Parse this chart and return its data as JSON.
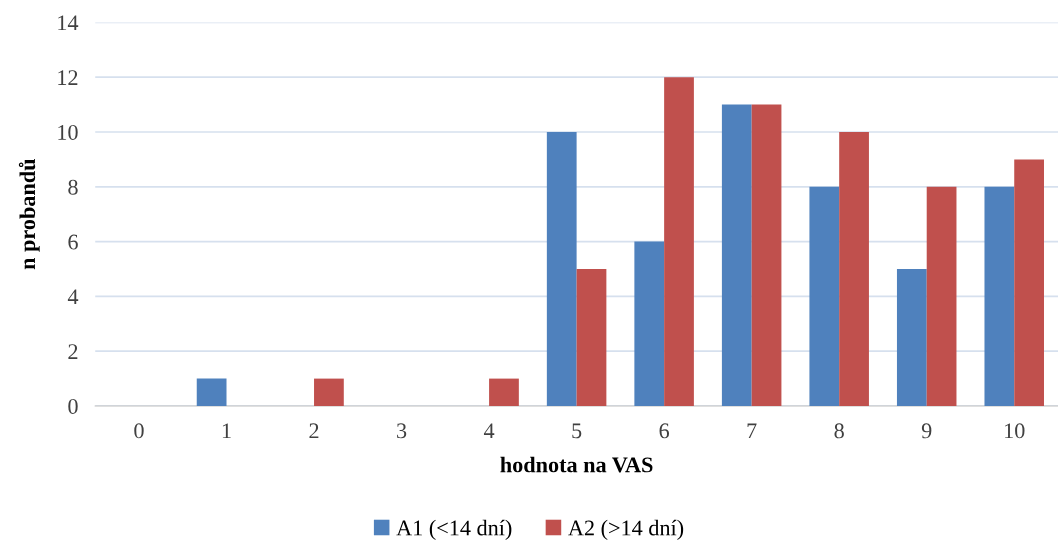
{
  "chart_data": {
    "type": "bar",
    "xlabel": "hodnota na VAS",
    "ylabel": "n probandů",
    "categories": [
      "0",
      "1",
      "2",
      "3",
      "4",
      "5",
      "6",
      "7",
      "8",
      "9",
      "10"
    ],
    "series": [
      {
        "name": "A1 (<14 dní)",
        "color": "#4f81bd",
        "values": [
          0,
          1,
          0,
          0,
          0,
          10,
          6,
          11,
          8,
          5,
          8
        ]
      },
      {
        "name": "A2 (>14 dní)",
        "color": "#c0504d",
        "values": [
          0,
          0,
          1,
          0,
          1,
          5,
          12,
          11,
          10,
          8,
          9
        ]
      }
    ],
    "ylim": [
      0,
      14
    ],
    "yticks": [
      0,
      2,
      4,
      6,
      8,
      10,
      12,
      14
    ],
    "grid": "y",
    "legend": "bottom"
  }
}
